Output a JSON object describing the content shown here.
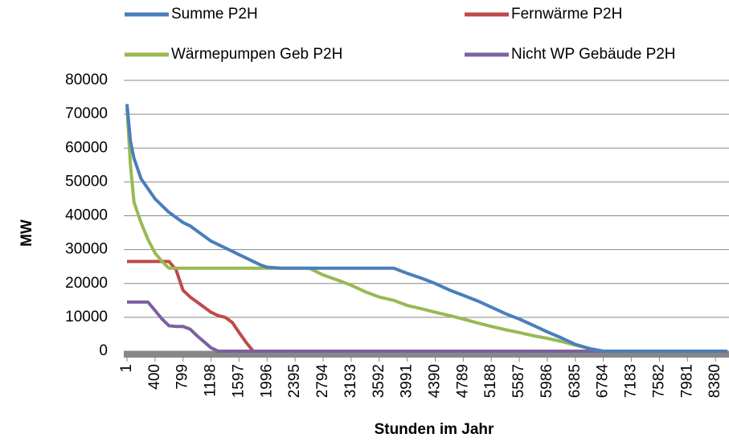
{
  "chart_data": {
    "type": "line",
    "y_label": "MW",
    "x_label": "Stunden im Jahr",
    "x": [
      1,
      50,
      100,
      200,
      300,
      400,
      500,
      600,
      700,
      799,
      900,
      1000,
      1198,
      1300,
      1400,
      1500,
      1597,
      1700,
      1800,
      1900,
      1996,
      2200,
      2395,
      2600,
      2794,
      3000,
      3193,
      3400,
      3592,
      3800,
      3991,
      4200,
      4390,
      4600,
      4789,
      5000,
      5188,
      5400,
      5587,
      5800,
      5986,
      6200,
      6385,
      6600,
      6784,
      7000,
      8550
    ],
    "series": [
      {
        "name": "Summe P2H",
        "color": "#4a7ebb",
        "values": [
          73000,
          62000,
          57000,
          51000,
          48000,
          45000,
          43000,
          41000,
          39500,
          38000,
          37000,
          35500,
          32500,
          31500,
          30500,
          29500,
          28500,
          27500,
          26500,
          25500,
          24800,
          24500,
          24500,
          24500,
          24500,
          24500,
          24500,
          24500,
          24500,
          24500,
          23000,
          21500,
          20000,
          18000,
          16500,
          14800,
          13000,
          11000,
          9500,
          7500,
          5700,
          3800,
          2000,
          700,
          0,
          0,
          0
        ]
      },
      {
        "name": "Fernwärme P2H",
        "color": "#be4b48",
        "values": [
          26500,
          26500,
          26500,
          26500,
          26500,
          26500,
          26500,
          26500,
          24000,
          18000,
          16000,
          14500,
          11500,
          10500,
          10000,
          8500,
          5500,
          2500,
          0,
          0,
          0,
          0,
          0,
          0,
          0,
          0,
          0,
          0,
          0,
          0,
          0,
          0,
          0,
          0,
          0,
          0,
          0,
          0,
          0,
          0,
          0,
          0,
          0,
          0,
          0,
          0,
          0
        ]
      },
      {
        "name": "Wärmepumpen Geb P2H",
        "color": "#98b954",
        "values": [
          72000,
          55000,
          44000,
          38000,
          33000,
          29000,
          26500,
          24500,
          24500,
          24500,
          24500,
          24500,
          24500,
          24500,
          24500,
          24500,
          24500,
          24500,
          24500,
          24500,
          24500,
          24500,
          24500,
          24500,
          22500,
          21000,
          19500,
          17500,
          16000,
          15000,
          13500,
          12500,
          11500,
          10500,
          9500,
          8300,
          7300,
          6300,
          5500,
          4500,
          3800,
          2800,
          1800,
          700,
          0,
          0,
          0
        ]
      },
      {
        "name": "Nicht WP Gebäude P2H",
        "color": "#7d60a0",
        "values": [
          14500,
          14500,
          14500,
          14500,
          14500,
          12000,
          9500,
          7500,
          7300,
          7300,
          6500,
          4500,
          1000,
          0,
          0,
          0,
          0,
          0,
          0,
          0,
          0,
          0,
          0,
          0,
          0,
          0,
          0,
          0,
          0,
          0,
          0,
          0,
          0,
          0,
          0,
          0,
          0,
          0,
          0,
          0,
          0,
          0,
          0,
          0,
          0,
          0,
          0
        ]
      }
    ],
    "xlim": [
      1,
      8550
    ],
    "xticks": [
      1,
      400,
      799,
      1198,
      1597,
      1996,
      2395,
      2794,
      3193,
      3592,
      3991,
      4390,
      4789,
      5188,
      5587,
      5986,
      6385,
      6784,
      7183,
      7582,
      7981,
      8380
    ],
    "ylim": [
      0,
      80000
    ],
    "yticks": [
      0,
      10000,
      20000,
      30000,
      40000,
      50000,
      60000,
      70000,
      80000
    ],
    "grid": true,
    "legend": "top"
  }
}
